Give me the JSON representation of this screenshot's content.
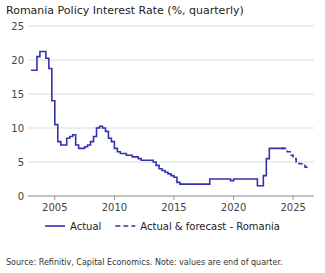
{
  "chart_data": {
    "type": "step",
    "title": "Romania Policy Interest Rate (%, quarterly)",
    "source": "Source: Refinitiv, Capital Economics. Note: values are end of quarter.",
    "series": [
      {
        "name": "Actual",
        "color": "#3333aa",
        "line_style": "solid",
        "x": [
          2003.0,
          2003.25,
          2003.5,
          2003.75,
          2004.0,
          2004.25,
          2004.5,
          2004.75,
          2005.0,
          2005.25,
          2005.5,
          2005.75,
          2006.0,
          2006.25,
          2006.5,
          2006.75,
          2007.0,
          2007.25,
          2007.5,
          2007.75,
          2008.0,
          2008.25,
          2008.5,
          2008.75,
          2009.0,
          2009.25,
          2009.5,
          2009.75,
          2010.0,
          2010.25,
          2010.5,
          2010.75,
          2011.0,
          2011.25,
          2011.5,
          2011.75,
          2012.0,
          2012.25,
          2012.5,
          2012.75,
          2013.0,
          2013.25,
          2013.5,
          2013.75,
          2014.0,
          2014.25,
          2014.5,
          2014.75,
          2015.0,
          2015.25,
          2015.5,
          2015.75,
          2016.0,
          2016.25,
          2016.5,
          2016.75,
          2017.0,
          2017.25,
          2017.5,
          2017.75,
          2018.0,
          2018.25,
          2018.5,
          2018.75,
          2019.0,
          2019.25,
          2019.5,
          2019.75,
          2020.0,
          2020.25,
          2020.5,
          2020.75,
          2021.0,
          2021.25,
          2021.5,
          2021.75,
          2022.0,
          2022.25,
          2022.5,
          2022.75,
          2023.0,
          2023.25,
          2023.5,
          2023.75,
          2024.0,
          2024.25
        ],
        "values": [
          18.5,
          18.5,
          20.5,
          21.25,
          21.25,
          20.25,
          18.75,
          14.0,
          10.5,
          8.0,
          7.5,
          7.5,
          8.5,
          8.75,
          9.0,
          7.5,
          7.0,
          7.0,
          7.25,
          7.5,
          8.0,
          8.75,
          10.0,
          10.25,
          10.0,
          9.5,
          8.5,
          8.0,
          7.0,
          6.5,
          6.25,
          6.25,
          6.0,
          6.0,
          5.75,
          5.75,
          5.5,
          5.25,
          5.25,
          5.25,
          5.25,
          5.0,
          4.5,
          4.0,
          3.75,
          3.5,
          3.25,
          3.0,
          2.75,
          2.0,
          1.75,
          1.75,
          1.75,
          1.75,
          1.75,
          1.75,
          1.75,
          1.75,
          1.75,
          1.75,
          2.5,
          2.5,
          2.5,
          2.5,
          2.5,
          2.5,
          2.5,
          2.25,
          2.5,
          2.5,
          2.5,
          2.5,
          2.5,
          2.5,
          2.5,
          2.5,
          1.5,
          1.5,
          3.0,
          5.5,
          7.0,
          7.0,
          7.0,
          7.0,
          7.0,
          7.0
        ]
      },
      {
        "name": "Actual & forecast - Romania",
        "color": "#3333aa",
        "line_style": "dashed",
        "x": [
          2024.0,
          2024.25,
          2024.5,
          2024.75,
          2025.0,
          2025.25,
          2025.5,
          2025.75,
          2026.0,
          2026.25
        ],
        "values": [
          7.0,
          7.0,
          6.5,
          6.0,
          5.5,
          5.0,
          4.75,
          4.5,
          4.25,
          4.0
        ]
      }
    ],
    "xlim": [
      2002.75,
      2026.75
    ],
    "xticks": [
      2005,
      2010,
      2015,
      2020,
      2025
    ],
    "ylim": [
      0,
      25
    ],
    "yticks": [
      0,
      5,
      10,
      15,
      20,
      25
    ],
    "grid": "y",
    "legend": "bottom"
  }
}
